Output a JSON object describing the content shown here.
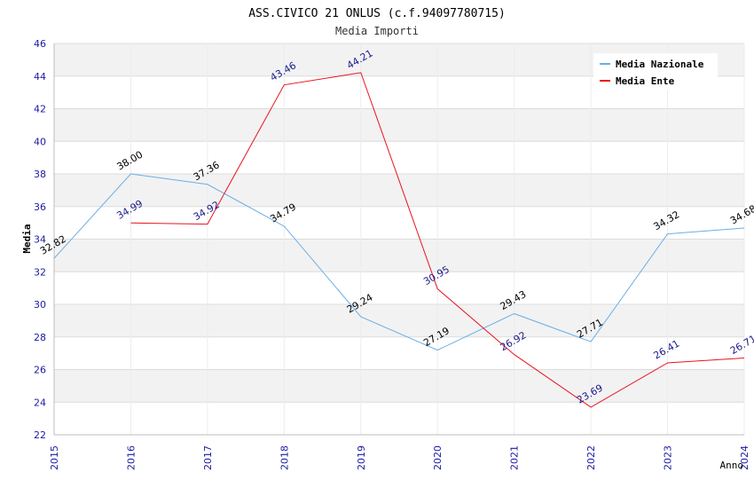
{
  "chart_data": {
    "type": "line",
    "title": "ASS.CIVICO 21 ONLUS (c.f.94097780715)",
    "subtitle": "Media Importi",
    "xlabel": "Anno",
    "ylabel": "Media",
    "ylim": [
      22,
      46
    ],
    "yticks": [
      "22",
      "24",
      "26",
      "28",
      "30",
      "32",
      "34",
      "36",
      "38",
      "40",
      "42",
      "44",
      "46"
    ],
    "categories": [
      "2015",
      "2016",
      "2017",
      "2018",
      "2019",
      "2020",
      "2021",
      "2022",
      "2023",
      "2024"
    ],
    "grid": true,
    "legend_position": "top-right",
    "series": [
      {
        "name": "Media Nazionale",
        "color": "#6aaee6",
        "label_color": "#000000",
        "values": [
          32.82,
          38.0,
          37.36,
          34.79,
          29.24,
          27.19,
          29.43,
          27.71,
          34.32,
          34.68
        ],
        "labels": [
          "32.82",
          "38.00",
          "37.36",
          "34.79",
          "29.24",
          "27.19",
          "29.43",
          "27.71",
          "34.32",
          "34.68"
        ]
      },
      {
        "name": "Media Ente",
        "color": "#e8141e",
        "label_color": "#1a1a8c",
        "values": [
          null,
          34.99,
          34.92,
          43.46,
          44.21,
          30.95,
          26.92,
          23.69,
          26.41,
          26.71
        ],
        "labels": [
          null,
          "34.99",
          "34.92",
          "43.46",
          "44.21",
          "30.95",
          "26.92",
          "23.69",
          "26.41",
          "26.71"
        ]
      }
    ]
  }
}
